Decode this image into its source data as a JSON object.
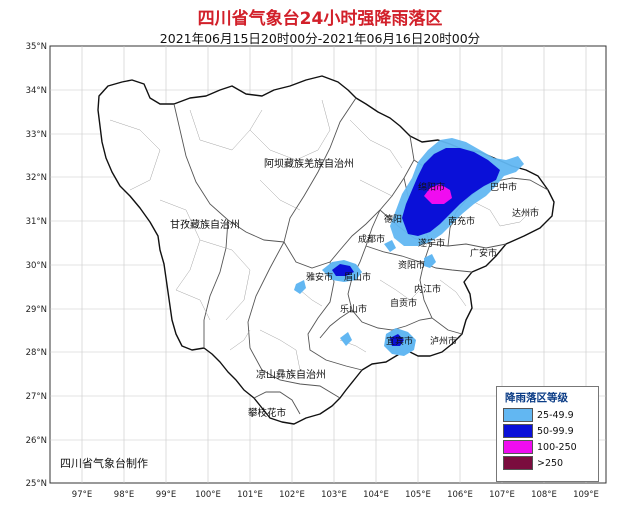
{
  "title": "四川省气象台24小时强降雨落区",
  "subtitle": "2021年06月15日20时00分-2021年06月16日20时00分",
  "axes": {
    "lat_ticks": [
      "35°N",
      "34°N",
      "33°N",
      "32°N",
      "31°N",
      "30°N",
      "29°N",
      "28°N",
      "27°N",
      "26°N",
      "25°N"
    ],
    "lon_ticks": [
      "97°E",
      "98°E",
      "99°E",
      "100°E",
      "101°E",
      "102°E",
      "103°E",
      "104°E",
      "105°E",
      "106°E",
      "107°E",
      "108°E",
      "109°E"
    ]
  },
  "regions": {
    "aba": "阿坝藏族羌族自治州",
    "ganzi": "甘孜藏族自治州",
    "liangshan": "凉山彝族自治州",
    "panzhihua": "攀枝花市",
    "mianyang": "绵阳市",
    "bazhong": "巴中市",
    "nanchong": "南充市",
    "dazhou": "达州市",
    "deyang": "德阳",
    "chengdu": "成都市",
    "suining": "遂宁市",
    "guangan": "广安市",
    "yaan": "雅安市",
    "meishan": "眉山市",
    "ziyang": "资阳市",
    "neijiang": "内江市",
    "zigong": "自贡市",
    "leshan": "乐山市",
    "yibin": "宜宾市",
    "luzhou": "泸州市"
  },
  "legend": {
    "title": "降雨落区等级",
    "items": [
      {
        "label": "25-49.9",
        "color": "#62b7f2"
      },
      {
        "label": "50-99.9",
        "color": "#0a10d8"
      },
      {
        "label": "100-250",
        "color": "#f00cf0"
      },
      {
        "label": ">250",
        "color": "#7a0c3e"
      }
    ]
  },
  "producer": "四川省气象台制作"
}
